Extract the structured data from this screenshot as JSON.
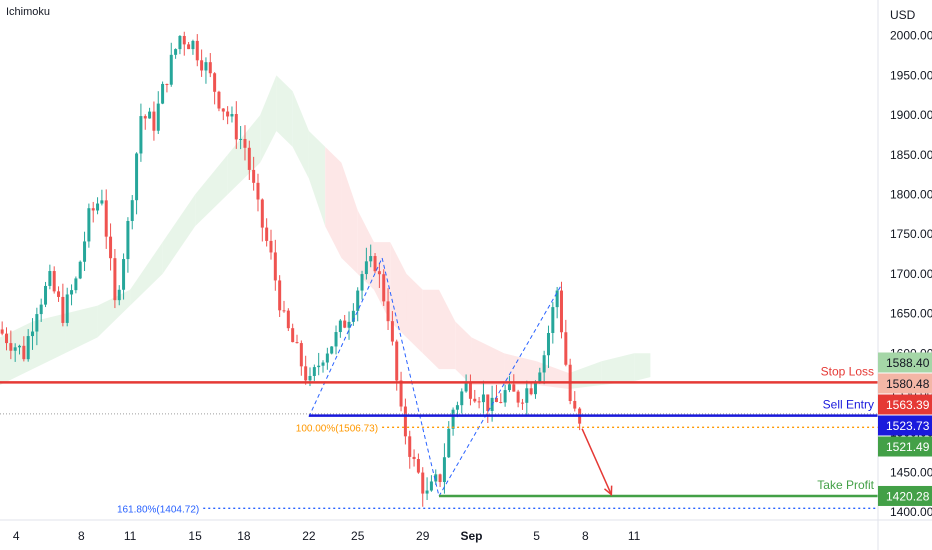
{
  "indicator_label": "Ichimoku",
  "currency_label": "USD",
  "chart_data": {
    "type": "candlestick",
    "title": "",
    "y_axis": {
      "min": 1390,
      "max": 2045,
      "ticks": [
        1400,
        1450,
        1500,
        1550,
        1600,
        1650,
        1700,
        1750,
        1800,
        1850,
        1900,
        1950,
        2000
      ]
    },
    "x_axis": {
      "start_day": 3,
      "end_day": 57,
      "tick_labels": [
        {
          "label": "4",
          "day": 4
        },
        {
          "label": "8",
          "day": 8
        },
        {
          "label": "11",
          "day": 11
        },
        {
          "label": "15",
          "day": 15
        },
        {
          "label": "18",
          "day": 18
        },
        {
          "label": "22",
          "day": 22
        },
        {
          "label": "25",
          "day": 25
        },
        {
          "label": "29",
          "day": 29
        },
        {
          "label": "Sep",
          "day": 32
        },
        {
          "label": "5",
          "day": 36
        },
        {
          "label": "8",
          "day": 39
        },
        {
          "label": "11",
          "day": 42
        }
      ]
    },
    "close_series": [
      [
        3.0,
        1630
      ],
      [
        3.8,
        1615
      ],
      [
        4.6,
        1600
      ],
      [
        5.4,
        1660
      ],
      [
        6.2,
        1690
      ],
      [
        7.0,
        1650
      ],
      [
        7.8,
        1690
      ],
      [
        8.6,
        1770
      ],
      [
        9.4,
        1800
      ],
      [
        10.2,
        1660
      ],
      [
        11.0,
        1760
      ],
      [
        11.8,
        1900
      ],
      [
        12.6,
        1890
      ],
      [
        13.4,
        1950
      ],
      [
        14.2,
        2000
      ],
      [
        15.0,
        1990
      ],
      [
        15.8,
        1960
      ],
      [
        16.6,
        1920
      ],
      [
        17.4,
        1890
      ],
      [
        18.2,
        1860
      ],
      [
        19.0,
        1780
      ],
      [
        19.8,
        1720
      ],
      [
        20.6,
        1640
      ],
      [
        21.4,
        1600
      ],
      [
        22.2,
        1560
      ],
      [
        23.0,
        1600
      ],
      [
        23.8,
        1620
      ],
      [
        24.6,
        1650
      ],
      [
        25.4,
        1700
      ],
      [
        26.2,
        1715
      ],
      [
        27.0,
        1650
      ],
      [
        27.8,
        1520
      ],
      [
        28.6,
        1460
      ],
      [
        29.4,
        1420
      ],
      [
        30.2,
        1445
      ],
      [
        31.0,
        1530
      ],
      [
        31.8,
        1560
      ],
      [
        32.6,
        1550
      ],
      [
        33.4,
        1530
      ],
      [
        34.2,
        1550
      ],
      [
        35.0,
        1545
      ],
      [
        35.8,
        1560
      ],
      [
        36.6,
        1600
      ],
      [
        37.4,
        1680
      ],
      [
        38.2,
        1540
      ],
      [
        38.8,
        1505
      ]
    ],
    "kumo_cloud": [
      [
        3,
        1620,
        1560
      ],
      [
        5,
        1640,
        1580
      ],
      [
        7,
        1650,
        1600
      ],
      [
        9,
        1660,
        1620
      ],
      [
        11,
        1680,
        1660
      ],
      [
        13,
        1740,
        1700
      ],
      [
        15,
        1800,
        1760
      ],
      [
        17,
        1850,
        1800
      ],
      [
        19,
        1900,
        1840
      ],
      [
        20,
        1950,
        1880
      ],
      [
        21,
        1930,
        1860
      ],
      [
        22,
        1880,
        1820
      ],
      [
        23,
        1860,
        1760
      ],
      [
        24,
        1840,
        1720
      ],
      [
        25,
        1780,
        1700
      ],
      [
        26,
        1740,
        1680
      ],
      [
        27,
        1740,
        1640
      ],
      [
        28,
        1700,
        1620
      ],
      [
        29,
        1680,
        1600
      ],
      [
        30,
        1680,
        1580
      ],
      [
        31,
        1640,
        1580
      ],
      [
        32,
        1620,
        1560
      ],
      [
        34,
        1600,
        1560
      ],
      [
        36,
        1590,
        1560
      ],
      [
        38,
        1575,
        1555
      ],
      [
        40,
        1590,
        1560
      ],
      [
        42,
        1600,
        1565
      ],
      [
        43,
        1600,
        1570
      ]
    ],
    "pattern_lines": [
      {
        "name": "harmonic-xa",
        "from": [
          22,
          1520
        ],
        "to": [
          26.5,
          1720
        ]
      },
      {
        "name": "harmonic-ab",
        "from": [
          26.5,
          1720
        ],
        "to": [
          30,
          1420
        ]
      },
      {
        "name": "harmonic-bc",
        "from": [
          30,
          1420
        ],
        "to": [
          37.5,
          1685
        ]
      }
    ],
    "annotations": [
      {
        "name": "fib-1618",
        "label": "161.80%(1404.72)",
        "value": 1404.72,
        "from_day": 15.5,
        "to_day": 57,
        "color": "#2962ff",
        "style": "dotted"
      },
      {
        "name": "fib-1000",
        "label": "100.00%(1506.73)",
        "value": 1506.73,
        "from_day": 26.5,
        "to_day": 57,
        "color": "#ff9800",
        "style": "dotted"
      }
    ],
    "levels": [
      {
        "name": "stop-loss",
        "label": "Stop Loss",
        "value": 1563.39,
        "price_label": "1563.39",
        "color": "#e53935",
        "from_day": 3,
        "to_day": 57
      },
      {
        "name": "sell-entry",
        "label": "Sell Entry",
        "value": 1521.49,
        "price_label": "1521.49",
        "color": "#1a1adc",
        "from_day": 22,
        "to_day": 57
      },
      {
        "name": "take-profit",
        "label": "Take Profit",
        "value": 1420.28,
        "price_label": "1420.28",
        "color": "#43a047",
        "from_day": 30,
        "to_day": 57
      }
    ],
    "price_tags": [
      {
        "name": "tag-1588",
        "value": 1588.4,
        "text": "1588.40",
        "bg": "#a5d6a7",
        "fg": "#131722"
      },
      {
        "name": "tag-1580",
        "value": 1580.48,
        "text": "1580.48",
        "bg": "#f4b6a6",
        "fg": "#131722"
      },
      {
        "name": "tag-1563",
        "value": 1563.39,
        "text": "1563.39",
        "bg": "#e53935",
        "fg": "#ffffff"
      },
      {
        "name": "tag-1523",
        "value": 1523.73,
        "text": "1523.73",
        "bg": "#1a1adc",
        "fg": "#ffffff"
      },
      {
        "name": "tag-1521",
        "value": 1521.49,
        "text": "1521.49",
        "bg": "#43a047",
        "fg": "#ffffff"
      },
      {
        "name": "tag-1420",
        "value": 1420.28,
        "text": "1420.28",
        "bg": "#43a047",
        "fg": "#ffffff"
      }
    ],
    "arrow": {
      "from": [
        38.8,
        1505
      ],
      "to": [
        40.6,
        1422
      ],
      "color": "#e53935"
    },
    "last_price_line": {
      "value": 1523.73,
      "color": "#9e9e9e"
    },
    "colors": {
      "up": "#26a69a",
      "down": "#ef5350",
      "bull_cloud": "#e8f5e9",
      "bear_cloud": "#fde7e7"
    }
  }
}
